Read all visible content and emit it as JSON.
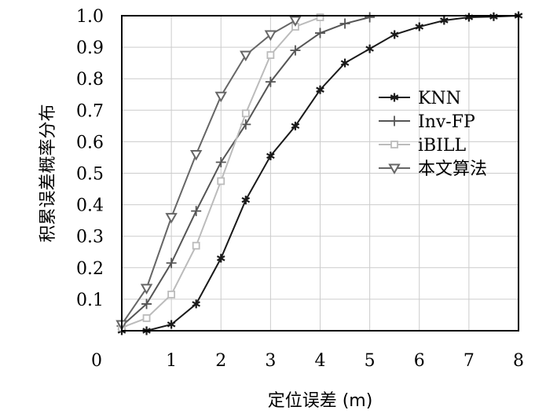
{
  "chart_data": {
    "type": "line",
    "title": "",
    "xlabel": "定位误差 (m)",
    "ylabel": "积累误差概率分布",
    "xlim": [
      0,
      8
    ],
    "ylim": [
      0,
      1.0
    ],
    "x_ticks": [
      0,
      1,
      2,
      3,
      4,
      5,
      6,
      7,
      8
    ],
    "y_ticks": [
      0.1,
      0.2,
      0.3,
      0.4,
      0.5,
      0.6,
      0.7,
      0.8,
      0.9,
      1.0
    ],
    "x_tick_labels": [
      "0",
      "1",
      "2",
      "3",
      "4",
      "5",
      "6",
      "7",
      "8"
    ],
    "y_tick_labels": [
      "0.1",
      "0.2",
      "0.3",
      "0.4",
      "0.5",
      "0.6",
      "0.7",
      "0.8",
      "0.9",
      "1.0"
    ],
    "grid": true,
    "legend_position": "right-middle",
    "series": [
      {
        "name": "KNN",
        "marker": "asterisk",
        "color": "#1a1a1a",
        "x": [
          0,
          0.5,
          1,
          1.5,
          2,
          2.5,
          3,
          3.5,
          4,
          4.5,
          5,
          5.5,
          6,
          6.5,
          7,
          7.5,
          8
        ],
        "y": [
          0.0,
          0.0,
          0.02,
          0.085,
          0.23,
          0.415,
          0.555,
          0.65,
          0.765,
          0.85,
          0.895,
          0.94,
          0.965,
          0.985,
          0.995,
          0.997,
          1.0
        ]
      },
      {
        "name": "Inv-FP",
        "marker": "plus",
        "color": "#555555",
        "x": [
          0,
          0.5,
          1,
          1.5,
          2,
          2.5,
          3,
          3.5,
          4,
          4.5,
          5
        ],
        "y": [
          0.015,
          0.085,
          0.215,
          0.38,
          0.535,
          0.655,
          0.79,
          0.89,
          0.945,
          0.975,
          0.995
        ]
      },
      {
        "name": "iBILL",
        "marker": "square",
        "color": "#bbbbbb",
        "x": [
          0,
          0.5,
          1,
          1.5,
          2,
          2.5,
          3,
          3.5,
          4
        ],
        "y": [
          0.01,
          0.04,
          0.115,
          0.27,
          0.475,
          0.69,
          0.875,
          0.965,
          0.995
        ]
      },
      {
        "name": "本文算法",
        "marker": "triangle-down",
        "color": "#666666",
        "x": [
          0,
          0.5,
          1,
          1.5,
          2,
          2.5,
          3,
          3.5
        ],
        "y": [
          0.02,
          0.135,
          0.36,
          0.56,
          0.745,
          0.875,
          0.94,
          0.985
        ]
      }
    ]
  }
}
